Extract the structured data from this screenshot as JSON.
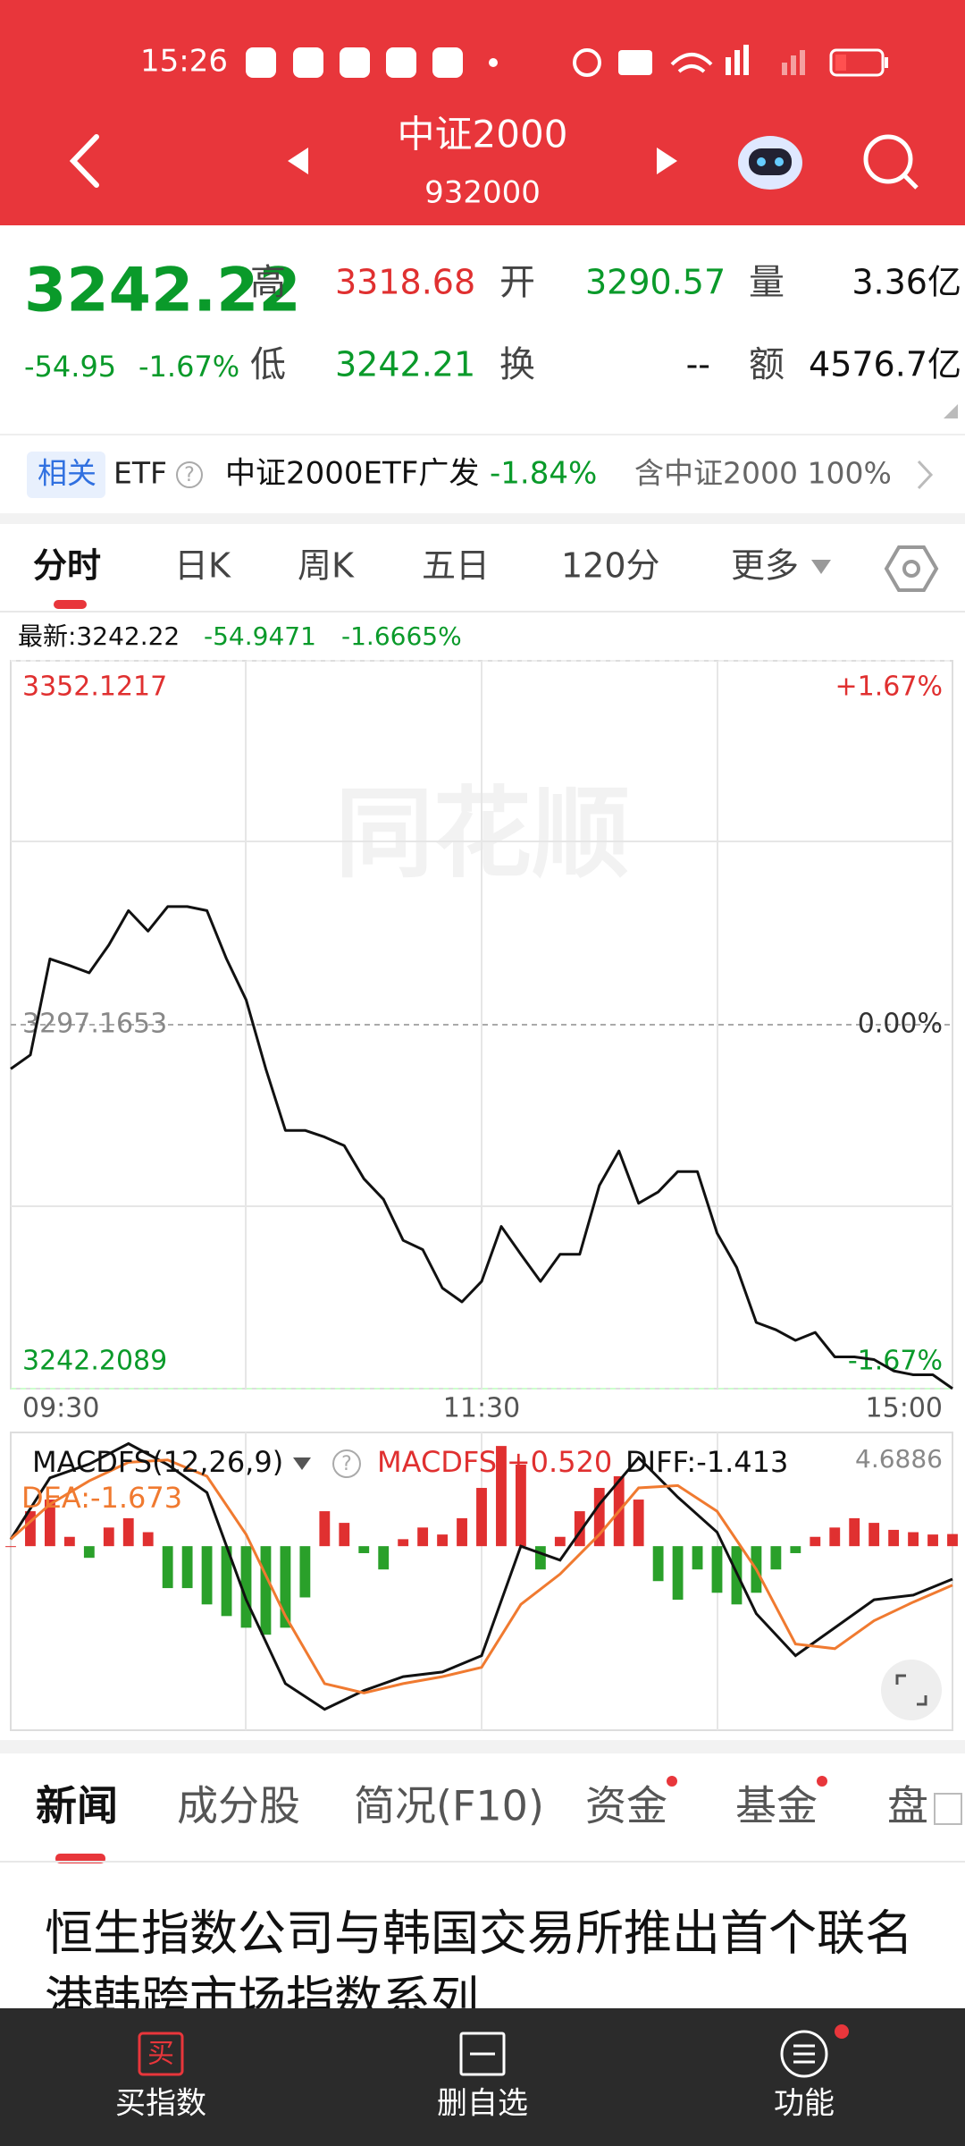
{
  "status_bar": {
    "time": "15:26"
  },
  "header": {
    "title": "中证2000",
    "code": "932000"
  },
  "quote": {
    "price": "3242.22",
    "change": "-54.95",
    "change_pct": "-1.67%",
    "fields": [
      {
        "label": "高",
        "value": "3318.68"
      },
      {
        "label": "开",
        "value": "3290.57"
      },
      {
        "label": "量",
        "value": "3.36亿"
      },
      {
        "label": "低",
        "value": "3242.21"
      },
      {
        "label": "换",
        "value": "--"
      },
      {
        "label": "额",
        "value": "4576.7亿"
      }
    ]
  },
  "etf": {
    "badge": "相关",
    "label": "ETF",
    "help": "?",
    "name": "中证2000ETF广发",
    "change": "-1.84%",
    "holding": "含中证2000 100%"
  },
  "chart_tabs": [
    "分时",
    "日K",
    "周K",
    "五日",
    "120分",
    "更多"
  ],
  "latest": {
    "label": "最新:3242.22",
    "change": "-54.9471",
    "change_pct": "-1.6665%"
  },
  "chart": {
    "type": "line",
    "watermark": "同花顺",
    "color": "#111111",
    "ylim": [
      3242.2089,
      3352.1217
    ],
    "yticks": [
      3352.1217,
      3297.1653,
      3242.2089
    ],
    "pct_labels": [
      "+1.67%",
      "0.00%",
      "-1.67%"
    ],
    "x_labels": [
      "09:30",
      "11:30",
      "15:00"
    ],
    "values": [
      3290.5,
      3292.6,
      3307.1,
      3306.1,
      3305.0,
      3309.2,
      3314.4,
      3311.3,
      3315.0,
      3315.0,
      3314.4,
      3307.1,
      3300.9,
      3290.5,
      3281.2,
      3281.2,
      3280.2,
      3278.9,
      3273.9,
      3270.8,
      3264.6,
      3263.2,
      3257.4,
      3255.3,
      3258.4,
      3266.7,
      3262.5,
      3258.4,
      3262.5,
      3262.5,
      3272.9,
      3278.1,
      3270.2,
      3271.9,
      3275.0,
      3275.0,
      3265.7,
      3260.5,
      3252.2,
      3251.1,
      3249.5,
      3250.7,
      3247.0,
      3247.0,
      3246.6,
      3244.9,
      3244.3,
      3244.3,
      3242.22
    ]
  },
  "macd": {
    "indicator": "MACDFS(12,26,9)",
    "help": "?",
    "macdfs_label": "MACDFS:+0.520",
    "diff_label": "DIFF:-1.413",
    "dea_label": "DEA:-1.673",
    "top_label": "4.6886",
    "ylim": [
      -7.9,
      4.6886
    ],
    "up_color": "#e03030",
    "down_color": "#2aa02a",
    "diff_color": "#111111",
    "dea_color": "#f07a30",
    "bars": [
      0.0,
      1.5,
      2.0,
      0.4,
      -0.5,
      0.8,
      1.2,
      0.6,
      -1.8,
      -1.8,
      -2.5,
      -3.0,
      -3.5,
      -3.8,
      -3.5,
      -2.2,
      1.5,
      1.0,
      -0.3,
      -1.0,
      0.3,
      0.8,
      0.5,
      1.2,
      2.5,
      4.3,
      3.5,
      -1.0,
      0.4,
      1.5,
      2.5,
      3.0,
      2.0,
      -1.5,
      -2.3,
      -1.0,
      -2.0,
      -2.5,
      -2.0,
      -1.0,
      -0.3,
      0.4,
      0.8,
      1.2,
      1.0,
      0.7,
      0.6,
      0.5,
      0.52
    ],
    "diff": [
      0.29,
      2.93,
      3.52,
      4.4,
      3.5,
      2.3,
      -2.3,
      -5.9,
      -7.0,
      -6.2,
      -5.6,
      -5.4,
      -4.7,
      0.0,
      -0.6,
      1.8,
      3.8,
      2.1,
      0.6,
      -2.9,
      -4.7,
      -3.5,
      -2.3,
      -2.1,
      -1.413
    ],
    "dea": [
      0.3,
      1.8,
      2.8,
      3.6,
      3.7,
      3.0,
      0.5,
      -3.0,
      -5.9,
      -6.3,
      -5.9,
      -5.6,
      -5.2,
      -2.5,
      -1.2,
      0.5,
      2.5,
      2.6,
      1.5,
      -1.0,
      -4.2,
      -4.4,
      -3.2,
      -2.4,
      -1.673
    ]
  },
  "news_tabs": [
    "新闻",
    "成分股",
    "简况(F10)",
    "资金",
    "基金",
    "盘"
  ],
  "headline": [
    "恒生指数公司与韩国交易所推出首个联名",
    "港韩跨市场指数系列"
  ],
  "bottom_nav": {
    "buy_icon": "买",
    "items": [
      "买指数",
      "删自选",
      "功能"
    ]
  }
}
